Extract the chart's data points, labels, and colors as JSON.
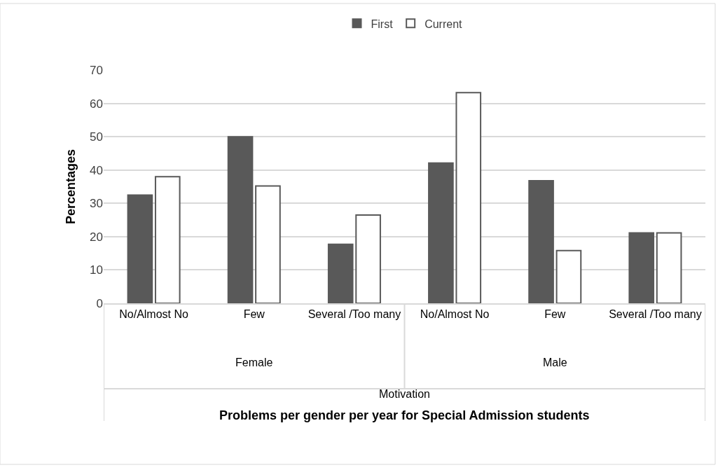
{
  "chart_data": {
    "type": "bar",
    "categories": [
      "No/Almost No",
      "Few",
      "Several /Too many",
      "No/Almost No",
      "Few",
      "Several /Too many"
    ],
    "series": [
      {
        "name": "First",
        "color": "#595959",
        "values": [
          32.5,
          50,
          17.7,
          42.1,
          36.8,
          21.1
        ]
      },
      {
        "name": "Current",
        "color": "#ffffff",
        "values": [
          38,
          35.2,
          26.5,
          63.2,
          15.8,
          21.1
        ]
      }
    ],
    "ylabel": "Percentages",
    "annotations": [
      "Female",
      "Male",
      "Motivation",
      "Problems per gender per year for Special Admission students"
    ],
    "ylim": [
      0,
      70
    ],
    "yticks": [
      0,
      10,
      20,
      30,
      40,
      50,
      60,
      70
    ],
    "grid": "y",
    "legend": "top"
  }
}
